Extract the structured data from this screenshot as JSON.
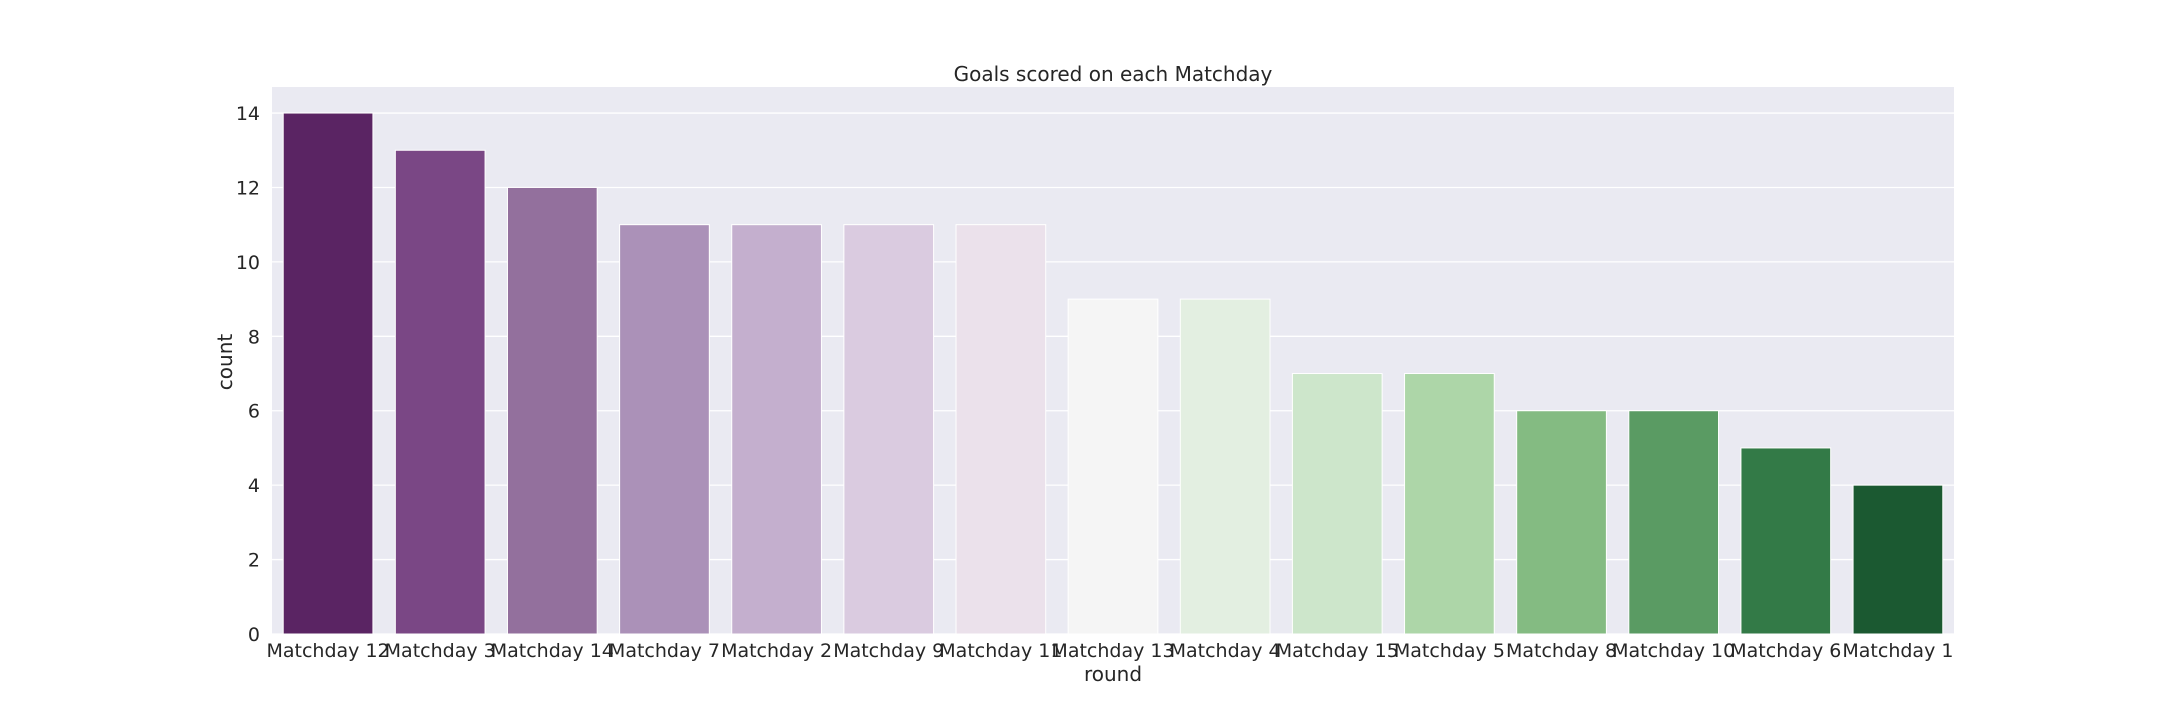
{
  "chart_data": {
    "type": "bar",
    "title": "Goals scored on each Matchday",
    "xlabel": "round",
    "ylabel": "count",
    "categories": [
      "Matchday 12",
      "Matchday 3",
      "Matchday 14",
      "Matchday 7",
      "Matchday 2",
      "Matchday 9",
      "Matchday 11",
      "Matchday 13",
      "Matchday 4",
      "Matchday 15",
      "Matchday 5",
      "Matchday 8",
      "Matchday 10",
      "Matchday 6",
      "Matchday 1"
    ],
    "values": [
      14,
      13,
      12,
      11,
      11,
      11,
      11,
      9,
      9,
      7,
      7,
      6,
      6,
      5,
      4
    ],
    "colors": [
      "#5a2463",
      "#7a4785",
      "#93709d",
      "#ab91b8",
      "#c4afce",
      "#dacbe0",
      "#ebe1eb",
      "#f5f5f5",
      "#e3efe1",
      "#cde6cb",
      "#add6a8",
      "#84bb82",
      "#5a9b63",
      "#337a47",
      "#1b5931"
    ],
    "yticks": [
      0,
      2,
      4,
      6,
      8,
      10,
      12,
      14
    ],
    "ylim": [
      0,
      14.7
    ],
    "grid": true,
    "background": "#eaeaf2"
  }
}
